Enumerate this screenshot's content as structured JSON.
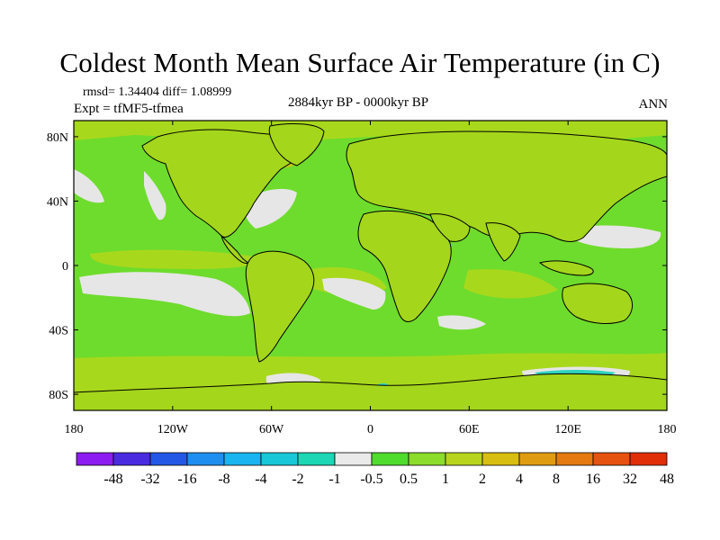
{
  "title": "Coldest Month Mean Surface Air Temperature (in C)",
  "stats": {
    "rmsd_label": "rmsd= 1.34404",
    "diff_label": "diff= 1.08999"
  },
  "experiment": "Expt = tfMF5-tfmea",
  "period": "2884kyr BP - 0000kyr BP",
  "season": "ANN",
  "axes": {
    "y_ticks": [
      {
        "lat": 80,
        "label": "80N"
      },
      {
        "lat": 40,
        "label": "40N"
      },
      {
        "lat": 0,
        "label": "0"
      },
      {
        "lat": -40,
        "label": "40S"
      },
      {
        "lat": -80,
        "label": "80S"
      }
    ],
    "x_ticks": [
      {
        "lon": -180,
        "label": "180"
      },
      {
        "lon": -120,
        "label": "120W"
      },
      {
        "lon": -60,
        "label": "60W"
      },
      {
        "lon": 0,
        "label": "0"
      },
      {
        "lon": 60,
        "label": "60E"
      },
      {
        "lon": 120,
        "label": "120E"
      },
      {
        "lon": 180,
        "label": "180"
      }
    ]
  },
  "colorbar": {
    "colors": [
      "#8c1cf0",
      "#4a2be0",
      "#2358e6",
      "#1e8ff0",
      "#1ab4f0",
      "#18c8d8",
      "#1cd6b4",
      "#eaeaea",
      "#50dc2c",
      "#8cdc2c",
      "#b8d41c",
      "#d8be10",
      "#e09c10",
      "#e47a10",
      "#e65210",
      "#e02e08"
    ],
    "labels": [
      "-48",
      "-32",
      "-16",
      "-8",
      "-4",
      "-2",
      "-1",
      "-0.5",
      "0.5",
      "1",
      "2",
      "4",
      "8",
      "16",
      "32",
      "48"
    ]
  },
  "map_colors": {
    "ocean_base": "#6edc2c",
    "ocean_warm": "#a8d81c",
    "land_base": "#a4d61c",
    "land_warm": "#c6c814",
    "hot": "#d8a81a",
    "neutral": "#e6e6e6",
    "cool": "#2fd4c0"
  }
}
